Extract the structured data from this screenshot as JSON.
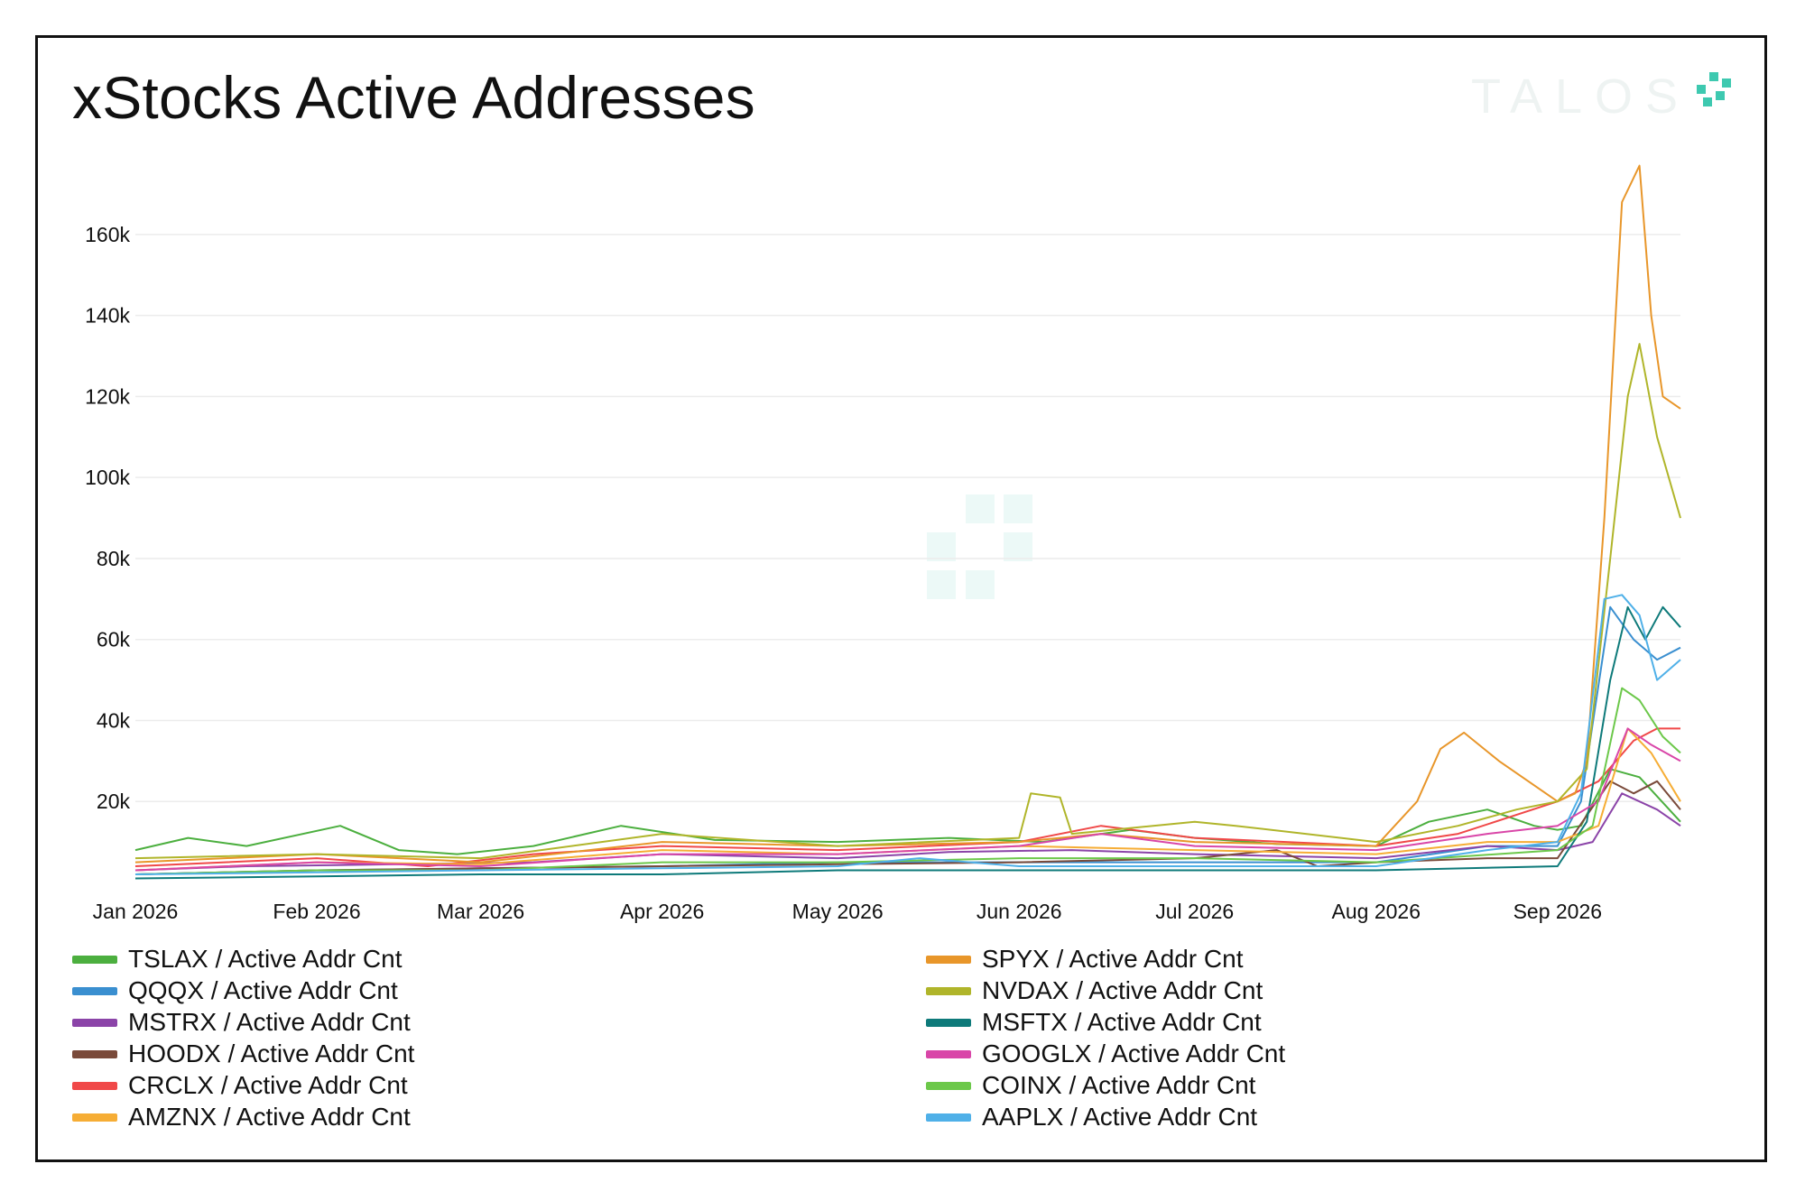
{
  "title": "xStocks Active Addresses",
  "brand": "TALOS",
  "chart_data": {
    "type": "line",
    "title": "xStocks Active Addresses",
    "xlabel": "",
    "ylabel": "",
    "x_ticks": [
      "Jan 2026",
      "Feb 2026",
      "Mar 2026",
      "Apr 2026",
      "May 2026",
      "Jun 2026",
      "Jul 2026",
      "Aug 2026",
      "Sep 2026"
    ],
    "y_ticks": [
      "20k",
      "40k",
      "60k",
      "80k",
      "100k",
      "120k",
      "140k",
      "160k"
    ],
    "ylim": [
      0,
      170000
    ],
    "xlim": [
      "2026-01-01",
      "2026-09-22"
    ],
    "grid": "horizontal",
    "legend_position": "bottom",
    "series": [
      {
        "name": "TSLAX / Active Addr Cnt",
        "color": "#4caf3f",
        "points": [
          [
            "2026-01-01",
            8000
          ],
          [
            "2026-01-10",
            11000
          ],
          [
            "2026-01-20",
            9000
          ],
          [
            "2026-02-05",
            14000
          ],
          [
            "2026-02-15",
            8000
          ],
          [
            "2026-02-25",
            7000
          ],
          [
            "2026-03-10",
            9000
          ],
          [
            "2026-03-25",
            14000
          ],
          [
            "2026-04-10",
            10500
          ],
          [
            "2026-05-01",
            10000
          ],
          [
            "2026-05-20",
            11000
          ],
          [
            "2026-06-05",
            10000
          ],
          [
            "2026-06-20",
            13000
          ],
          [
            "2026-07-01",
            11000
          ],
          [
            "2026-07-15",
            9500
          ],
          [
            "2026-08-01",
            9000
          ],
          [
            "2026-08-10",
            15000
          ],
          [
            "2026-08-20",
            18000
          ],
          [
            "2026-08-28",
            14000
          ],
          [
            "2026-09-01",
            13000
          ],
          [
            "2026-09-05",
            14000
          ],
          [
            "2026-09-10",
            28000
          ],
          [
            "2026-09-15",
            26000
          ],
          [
            "2026-09-22",
            15000
          ]
        ]
      },
      {
        "name": "QQQX / Active Addr Cnt",
        "color": "#3a8fd0",
        "points": [
          [
            "2026-01-01",
            2000
          ],
          [
            "2026-02-01",
            3000
          ],
          [
            "2026-03-01",
            3500
          ],
          [
            "2026-04-01",
            4000
          ],
          [
            "2026-05-01",
            5000
          ],
          [
            "2026-06-01",
            5000
          ],
          [
            "2026-07-01",
            5000
          ],
          [
            "2026-08-01",
            5000
          ],
          [
            "2026-08-20",
            9000
          ],
          [
            "2026-09-01",
            9000
          ],
          [
            "2026-09-05",
            20000
          ],
          [
            "2026-09-10",
            68000
          ],
          [
            "2026-09-14",
            60000
          ],
          [
            "2026-09-18",
            55000
          ],
          [
            "2026-09-22",
            58000
          ]
        ]
      },
      {
        "name": "MSTRX / Active Addr Cnt",
        "color": "#8b44a8",
        "points": [
          [
            "2026-01-01",
            3000
          ],
          [
            "2026-01-20",
            4000
          ],
          [
            "2026-02-15",
            4500
          ],
          [
            "2026-03-10",
            5000
          ],
          [
            "2026-04-01",
            7000
          ],
          [
            "2026-05-01",
            6000
          ],
          [
            "2026-05-20",
            7500
          ],
          [
            "2026-06-10",
            8000
          ],
          [
            "2026-07-01",
            7000
          ],
          [
            "2026-08-01",
            6000
          ],
          [
            "2026-08-20",
            9000
          ],
          [
            "2026-09-01",
            8000
          ],
          [
            "2026-09-07",
            10000
          ],
          [
            "2026-09-12",
            22000
          ],
          [
            "2026-09-18",
            18000
          ],
          [
            "2026-09-22",
            14000
          ]
        ]
      },
      {
        "name": "HOODX / Active Addr Cnt",
        "color": "#7a4a3a",
        "points": [
          [
            "2026-01-01",
            2000
          ],
          [
            "2026-02-01",
            3000
          ],
          [
            "2026-03-01",
            3500
          ],
          [
            "2026-04-01",
            4000
          ],
          [
            "2026-05-01",
            4500
          ],
          [
            "2026-06-01",
            5000
          ],
          [
            "2026-07-01",
            6000
          ],
          [
            "2026-07-15",
            8000
          ],
          [
            "2026-07-22",
            4000
          ],
          [
            "2026-08-01",
            5000
          ],
          [
            "2026-08-20",
            6000
          ],
          [
            "2026-09-01",
            6000
          ],
          [
            "2026-09-10",
            25000
          ],
          [
            "2026-09-14",
            22000
          ],
          [
            "2026-09-18",
            25000
          ],
          [
            "2026-09-22",
            18000
          ]
        ]
      },
      {
        "name": "CRCLX / Active Addr Cnt",
        "color": "#f04848",
        "points": [
          [
            "2026-01-01",
            4000
          ],
          [
            "2026-02-01",
            6000
          ],
          [
            "2026-02-20",
            4000
          ],
          [
            "2026-03-10",
            7000
          ],
          [
            "2026-04-01",
            9000
          ],
          [
            "2026-05-01",
            8000
          ],
          [
            "2026-06-01",
            10000
          ],
          [
            "2026-06-15",
            14000
          ],
          [
            "2026-07-01",
            11000
          ],
          [
            "2026-08-01",
            9000
          ],
          [
            "2026-08-15",
            12000
          ],
          [
            "2026-09-01",
            20000
          ],
          [
            "2026-09-08",
            25000
          ],
          [
            "2026-09-14",
            35000
          ],
          [
            "2026-09-18",
            38000
          ],
          [
            "2026-09-22",
            38000
          ]
        ]
      },
      {
        "name": "AMZNX / Active Addr Cnt",
        "color": "#f6ad35",
        "points": [
          [
            "2026-01-01",
            3000
          ],
          [
            "2026-02-01",
            5000
          ],
          [
            "2026-03-01",
            4500
          ],
          [
            "2026-04-01",
            8000
          ],
          [
            "2026-05-01",
            7000
          ],
          [
            "2026-06-01",
            9000
          ],
          [
            "2026-07-01",
            8000
          ],
          [
            "2026-08-01",
            7000
          ],
          [
            "2026-08-20",
            10000
          ],
          [
            "2026-09-01",
            10000
          ],
          [
            "2026-09-08",
            14000
          ],
          [
            "2026-09-13",
            38000
          ],
          [
            "2026-09-17",
            32000
          ],
          [
            "2026-09-22",
            20000
          ]
        ]
      },
      {
        "name": "SPYX / Active Addr Cnt",
        "color": "#e8962a",
        "points": [
          [
            "2026-01-01",
            5000
          ],
          [
            "2026-02-01",
            7000
          ],
          [
            "2026-03-01",
            5000
          ],
          [
            "2026-04-01",
            10000
          ],
          [
            "2026-05-01",
            9000
          ],
          [
            "2026-06-01",
            10000
          ],
          [
            "2026-06-15",
            12000
          ],
          [
            "2026-07-01",
            10000
          ],
          [
            "2026-08-01",
            9000
          ],
          [
            "2026-08-08",
            20000
          ],
          [
            "2026-08-12",
            33000
          ],
          [
            "2026-08-16",
            37000
          ],
          [
            "2026-08-22",
            30000
          ],
          [
            "2026-08-28",
            24000
          ],
          [
            "2026-09-01",
            20000
          ],
          [
            "2026-09-04",
            22000
          ],
          [
            "2026-09-06",
            30000
          ],
          [
            "2026-09-09",
            90000
          ],
          [
            "2026-09-12",
            168000
          ],
          [
            "2026-09-15",
            177000
          ],
          [
            "2026-09-17",
            140000
          ],
          [
            "2026-09-19",
            120000
          ],
          [
            "2026-09-22",
            117000
          ]
        ]
      },
      {
        "name": "NVDAX / Active Addr Cnt",
        "color": "#b0b52a",
        "points": [
          [
            "2026-01-01",
            6000
          ],
          [
            "2026-02-01",
            7000
          ],
          [
            "2026-03-01",
            6000
          ],
          [
            "2026-04-01",
            12000
          ],
          [
            "2026-05-01",
            9000
          ],
          [
            "2026-06-01",
            11000
          ],
          [
            "2026-06-03",
            22000
          ],
          [
            "2026-06-08",
            21000
          ],
          [
            "2026-06-10",
            12000
          ],
          [
            "2026-07-01",
            15000
          ],
          [
            "2026-07-08",
            14000
          ],
          [
            "2026-08-01",
            10000
          ],
          [
            "2026-08-15",
            14000
          ],
          [
            "2026-08-25",
            18000
          ],
          [
            "2026-09-01",
            20000
          ],
          [
            "2026-09-06",
            28000
          ],
          [
            "2026-09-10",
            80000
          ],
          [
            "2026-09-13",
            120000
          ],
          [
            "2026-09-15",
            133000
          ],
          [
            "2026-09-18",
            110000
          ],
          [
            "2026-09-22",
            90000
          ]
        ]
      },
      {
        "name": "MSFTX / Active Addr Cnt",
        "color": "#0e7a7a",
        "points": [
          [
            "2026-01-01",
            1000
          ],
          [
            "2026-02-01",
            1500
          ],
          [
            "2026-03-01",
            2000
          ],
          [
            "2026-04-01",
            2000
          ],
          [
            "2026-05-01",
            3000
          ],
          [
            "2026-06-01",
            3000
          ],
          [
            "2026-07-01",
            3000
          ],
          [
            "2026-08-01",
            3000
          ],
          [
            "2026-09-01",
            4000
          ],
          [
            "2026-09-06",
            15000
          ],
          [
            "2026-09-10",
            50000
          ],
          [
            "2026-09-13",
            68000
          ],
          [
            "2026-09-16",
            60000
          ],
          [
            "2026-09-19",
            68000
          ],
          [
            "2026-09-22",
            63000
          ]
        ]
      },
      {
        "name": "GOOGLX / Active Addr Cnt",
        "color": "#d946a8",
        "points": [
          [
            "2026-01-01",
            3000
          ],
          [
            "2026-02-01",
            5000
          ],
          [
            "2026-03-01",
            4000
          ],
          [
            "2026-04-01",
            7000
          ],
          [
            "2026-05-01",
            7000
          ],
          [
            "2026-06-01",
            9000
          ],
          [
            "2026-06-15",
            12000
          ],
          [
            "2026-07-01",
            9000
          ],
          [
            "2026-08-01",
            8000
          ],
          [
            "2026-08-20",
            12000
          ],
          [
            "2026-09-01",
            14000
          ],
          [
            "2026-09-08",
            20000
          ],
          [
            "2026-09-13",
            38000
          ],
          [
            "2026-09-17",
            34000
          ],
          [
            "2026-09-22",
            30000
          ]
        ]
      },
      {
        "name": "COINX / Active Addr Cnt",
        "color": "#6cc84a",
        "points": [
          [
            "2026-01-01",
            2000
          ],
          [
            "2026-02-01",
            3000
          ],
          [
            "2026-03-01",
            3000
          ],
          [
            "2026-04-01",
            5000
          ],
          [
            "2026-05-01",
            5000
          ],
          [
            "2026-06-01",
            6000
          ],
          [
            "2026-07-01",
            6000
          ],
          [
            "2026-08-01",
            5000
          ],
          [
            "2026-09-01",
            8000
          ],
          [
            "2026-09-07",
            14000
          ],
          [
            "2026-09-12",
            48000
          ],
          [
            "2026-09-15",
            45000
          ],
          [
            "2026-09-19",
            36000
          ],
          [
            "2026-09-22",
            32000
          ]
        ]
      },
      {
        "name": "AAPLX / Active Addr Cnt",
        "color": "#4fb0e8",
        "points": [
          [
            "2026-01-01",
            2000
          ],
          [
            "2026-02-01",
            2500
          ],
          [
            "2026-03-01",
            3000
          ],
          [
            "2026-04-01",
            3500
          ],
          [
            "2026-05-01",
            4000
          ],
          [
            "2026-05-15",
            6000
          ],
          [
            "2026-06-01",
            4000
          ],
          [
            "2026-07-01",
            4000
          ],
          [
            "2026-08-01",
            4000
          ],
          [
            "2026-08-20",
            8000
          ],
          [
            "2026-09-01",
            10000
          ],
          [
            "2026-09-05",
            22000
          ],
          [
            "2026-09-09",
            70000
          ],
          [
            "2026-09-12",
            71000
          ],
          [
            "2026-09-15",
            66000
          ],
          [
            "2026-09-18",
            50000
          ],
          [
            "2026-09-22",
            55000
          ]
        ]
      }
    ]
  }
}
